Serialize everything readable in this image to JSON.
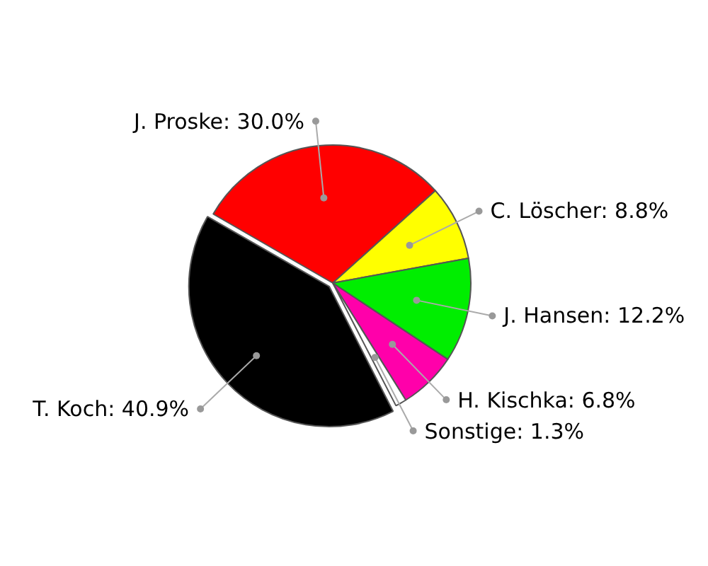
{
  "chart_data": {
    "type": "pie",
    "categories": [
      "J. Proske",
      "C. Löscher",
      "J. Hansen",
      "H. Kischka",
      "Sonstige",
      "T. Koch"
    ],
    "values": [
      30.0,
      8.8,
      12.2,
      6.8,
      1.3,
      40.9
    ],
    "colors": [
      "#ff0000",
      "#ffff00",
      "#00ee00",
      "#ff00aa",
      "#ffffff",
      "#000000"
    ],
    "value_labels": [
      "30.0%",
      "8.8%",
      "12.2%",
      "6.8%",
      "1.3%",
      "40.9%"
    ]
  }
}
